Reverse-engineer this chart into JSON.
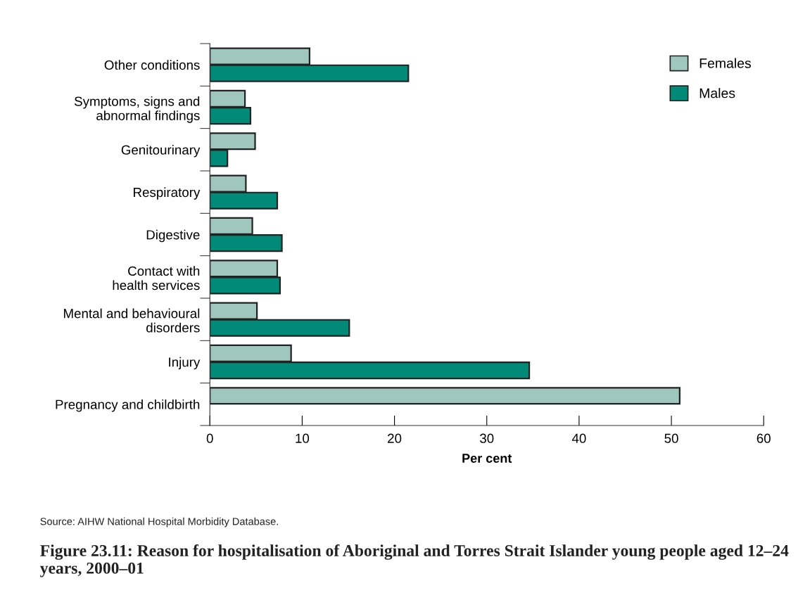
{
  "chart_data": {
    "type": "bar",
    "orientation": "horizontal",
    "title": "Figure 23.11: Reason for hospitalisation of Aboriginal and Torres Strait Islander young people aged 12–24 years, 2000–01",
    "xlabel": "Per cent",
    "categories": [
      "Other conditions",
      "Symptoms, signs and\nabnormal findings",
      "Genitourinary",
      "Respiratory",
      "Digestive",
      "Contact with\nhealth services",
      "Mental and behavioural\ndisorders",
      "Injury",
      "Pregnancy and childbirth"
    ],
    "series": [
      {
        "name": "Females",
        "color": "#9fc7bd",
        "values": [
          10.8,
          3.8,
          4.9,
          3.9,
          4.6,
          7.3,
          5.1,
          8.8,
          50.9
        ]
      },
      {
        "name": "Males",
        "color": "#028a78",
        "values": [
          21.5,
          4.4,
          1.9,
          7.3,
          7.8,
          7.6,
          15.1,
          34.6,
          null
        ]
      }
    ],
    "xlim": [
      0,
      60
    ],
    "xticks": [
      0,
      10,
      20,
      30,
      40,
      50,
      60
    ],
    "legend": "top right",
    "grid": false,
    "annotations": [
      "Source: AIHW National Hospital Morbidity Database."
    ]
  }
}
